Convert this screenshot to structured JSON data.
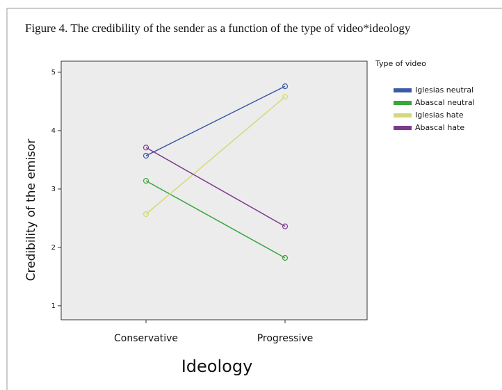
{
  "chart_data": {
    "type": "line",
    "title": "Figure 4. The credibility of the sender as a function of the type of video*ideology",
    "x_label": "Ideology",
    "y_label": "Credibility of the emisor",
    "legend_title": "Type of video",
    "legend_position": "right",
    "categories": [
      "Conservative",
      "Progressive"
    ],
    "series": [
      {
        "name": "Iglesias neutral",
        "color": "#3c5aa6",
        "values": [
          3.57,
          4.76
        ]
      },
      {
        "name": "Abascal neutral",
        "color": "#3aa53a",
        "values": [
          3.14,
          1.82
        ]
      },
      {
        "name": "Iglesias hate",
        "color": "#d4d97a",
        "values": [
          2.57,
          4.58
        ]
      },
      {
        "name": "Abascal hate",
        "color": "#7d3a8c",
        "values": [
          3.71,
          2.36
        ]
      }
    ],
    "ylim": [
      0.76,
      5.19
    ],
    "yticks": [
      1,
      2,
      3,
      4,
      5
    ]
  }
}
